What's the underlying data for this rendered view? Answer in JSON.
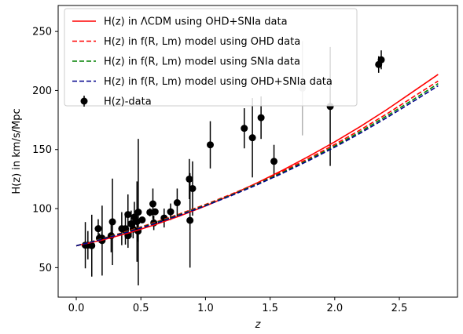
{
  "chart_data": {
    "type": "line",
    "xlabel": "z",
    "ylabel": "H(z) in km/s/Mpc",
    "xlim": [
      -0.14,
      2.95
    ],
    "ylim": [
      25,
      272
    ],
    "xticks": [
      0.0,
      0.5,
      1.0,
      1.5,
      2.0,
      2.5
    ],
    "xtick_labels": [
      "0.0",
      "0.5",
      "1.0",
      "1.5",
      "2.0",
      "2.5"
    ],
    "yticks": [
      50,
      100,
      150,
      200,
      250
    ],
    "ytick_labels": [
      "50",
      "100",
      "150",
      "200",
      "250"
    ],
    "grid": false,
    "legend_position": "top-left",
    "series": [
      {
        "name": "H(z) in ΛCDM using OHD+SNIa data",
        "color": "#ff0000",
        "style": "solid",
        "x": [
          0.0,
          0.2,
          0.4,
          0.6,
          0.8,
          1.0,
          1.2,
          1.4,
          1.6,
          1.8,
          2.0,
          2.2,
          2.4,
          2.6,
          2.8
        ],
        "y": [
          68.5,
          73.3,
          79.2,
          86.0,
          93.7,
          102.2,
          111.6,
          121.8,
          132.7,
          144.3,
          156.5,
          169.6,
          183.6,
          198.6,
          213.6
        ]
      },
      {
        "name": "H(z) in f(R, Lm) model  using OHD data",
        "color": "#ff0000",
        "style": "dashed",
        "x": [
          0.0,
          0.2,
          0.4,
          0.6,
          0.8,
          1.0,
          1.2,
          1.4,
          1.6,
          1.8,
          2.0,
          2.2,
          2.4,
          2.6,
          2.8
        ],
        "y": [
          68.5,
          74.5,
          81.0,
          88.0,
          95.5,
          103.5,
          112.2,
          121.5,
          131.7,
          142.6,
          154.3,
          166.8,
          180.0,
          194.0,
          208.0
        ]
      },
      {
        "name": "H(z) in f(R, Lm) model using SNIa data",
        "color": "#008000",
        "style": "dashed",
        "x": [
          0.0,
          0.2,
          0.4,
          0.6,
          0.8,
          1.0,
          1.2,
          1.4,
          1.6,
          1.8,
          2.0,
          2.2,
          2.4,
          2.6,
          2.8
        ],
        "y": [
          68.5,
          74.3,
          80.6,
          87.5,
          94.9,
          102.9,
          111.5,
          120.8,
          130.8,
          141.5,
          153.0,
          165.3,
          178.3,
          191.8,
          205.8
        ]
      },
      {
        "name": "H(z) in f(R, Lm) model  using OHD+SNIa data",
        "color": "#00008b",
        "style": "dashed",
        "x": [
          0.0,
          0.2,
          0.4,
          0.6,
          0.8,
          1.0,
          1.2,
          1.4,
          1.6,
          1.8,
          2.0,
          2.2,
          2.4,
          2.6,
          2.8
        ],
        "y": [
          68.5,
          74.0,
          80.2,
          87.0,
          94.4,
          102.4,
          111.0,
          120.2,
          130.1,
          140.7,
          152.0,
          164.0,
          176.8,
          190.2,
          204.0
        ]
      }
    ],
    "points": {
      "name": "H(z)-data",
      "color": "#000000",
      "data": [
        {
          "x": 0.07,
          "y": 69,
          "err": 19.6
        },
        {
          "x": 0.09,
          "y": 69,
          "err": 12
        },
        {
          "x": 0.12,
          "y": 68.6,
          "err": 26.2
        },
        {
          "x": 0.17,
          "y": 83,
          "err": 8
        },
        {
          "x": 0.179,
          "y": 75,
          "err": 4
        },
        {
          "x": 0.199,
          "y": 75,
          "err": 5
        },
        {
          "x": 0.2,
          "y": 72.9,
          "err": 29.6
        },
        {
          "x": 0.27,
          "y": 77,
          "err": 14
        },
        {
          "x": 0.28,
          "y": 88.8,
          "err": 36.6
        },
        {
          "x": 0.352,
          "y": 83,
          "err": 14
        },
        {
          "x": 0.38,
          "y": 81.5,
          "err": 1.9
        },
        {
          "x": 0.3802,
          "y": 83,
          "err": 13.5
        },
        {
          "x": 0.4,
          "y": 95,
          "err": 17
        },
        {
          "x": 0.4004,
          "y": 77,
          "err": 10.2
        },
        {
          "x": 0.4247,
          "y": 87.1,
          "err": 11.2
        },
        {
          "x": 0.43,
          "y": 86.5,
          "err": 3.7
        },
        {
          "x": 0.44,
          "y": 82.6,
          "err": 7.8
        },
        {
          "x": 0.4497,
          "y": 92.8,
          "err": 12.9
        },
        {
          "x": 0.47,
          "y": 89,
          "err": 34
        },
        {
          "x": 0.4783,
          "y": 80.9,
          "err": 9
        },
        {
          "x": 0.48,
          "y": 97,
          "err": 62
        },
        {
          "x": 0.51,
          "y": 90.4,
          "err": 1.9
        },
        {
          "x": 0.57,
          "y": 96.8,
          "err": 3.4
        },
        {
          "x": 0.593,
          "y": 104,
          "err": 13
        },
        {
          "x": 0.6,
          "y": 87.9,
          "err": 6.1
        },
        {
          "x": 0.61,
          "y": 97.3,
          "err": 2.1
        },
        {
          "x": 0.68,
          "y": 92,
          "err": 8
        },
        {
          "x": 0.73,
          "y": 97.3,
          "err": 7
        },
        {
          "x": 0.781,
          "y": 105,
          "err": 12
        },
        {
          "x": 0.875,
          "y": 125,
          "err": 17
        },
        {
          "x": 0.88,
          "y": 90,
          "err": 40
        },
        {
          "x": 0.9,
          "y": 117,
          "err": 23
        },
        {
          "x": 1.037,
          "y": 154,
          "err": 20
        },
        {
          "x": 1.3,
          "y": 168,
          "err": 17
        },
        {
          "x": 1.363,
          "y": 160,
          "err": 33.6
        },
        {
          "x": 1.43,
          "y": 177,
          "err": 18
        },
        {
          "x": 1.53,
          "y": 140,
          "err": 14
        },
        {
          "x": 1.75,
          "y": 202,
          "err": 40,
          "faded": true
        },
        {
          "x": 1.965,
          "y": 186.5,
          "err": 50.4
        },
        {
          "x": 2.34,
          "y": 222,
          "err": 7
        },
        {
          "x": 2.36,
          "y": 226,
          "err": 8
        }
      ]
    }
  }
}
